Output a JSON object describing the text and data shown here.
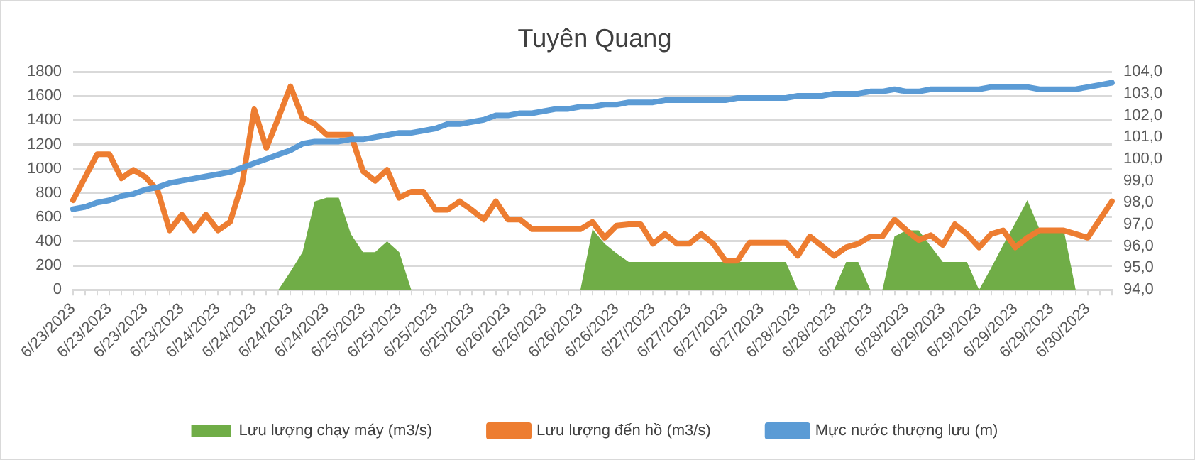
{
  "chart_data": {
    "type": "line",
    "title": "Tuyên Quang",
    "categories": [
      "6/23/2023",
      null,
      null,
      "6/23/2023",
      null,
      null,
      "6/23/2023",
      null,
      null,
      "6/23/2023",
      null,
      null,
      "6/24/2023",
      null,
      null,
      "6/24/2023",
      null,
      null,
      "6/24/2023",
      null,
      null,
      "6/24/2023",
      null,
      null,
      "6/25/2023",
      null,
      null,
      "6/25/2023",
      null,
      null,
      "6/25/2023",
      null,
      null,
      "6/25/2023",
      null,
      null,
      "6/26/2023",
      null,
      null,
      "6/26/2023",
      null,
      null,
      "6/26/2023",
      null,
      null,
      "6/26/2023",
      null,
      null,
      "6/27/2023",
      null,
      null,
      "6/27/2023",
      null,
      null,
      "6/27/2023",
      null,
      null,
      "6/27/2023",
      null,
      null,
      "6/28/2023",
      null,
      null,
      "6/28/2023",
      null,
      null,
      "6/28/2023",
      null,
      null,
      "6/28/2023",
      null,
      null,
      "6/29/2023",
      null,
      null,
      "6/29/2023",
      null,
      null,
      "6/29/2023",
      null,
      null,
      "6/29/2023",
      null,
      null,
      "6/30/2023",
      null,
      null
    ],
    "series": [
      {
        "name": "Lưu lượng chạy máy (m3/s)",
        "type": "area",
        "color": "#70ad47",
        "values": [
          0,
          0,
          0,
          0,
          0,
          0,
          0,
          0,
          0,
          0,
          0,
          0,
          0,
          0,
          0,
          0,
          0,
          0,
          150,
          310,
          730,
          760,
          760,
          460,
          310,
          310,
          400,
          310,
          0,
          0,
          0,
          0,
          0,
          0,
          0,
          0,
          0,
          0,
          0,
          0,
          0,
          0,
          0,
          500,
          380,
          300,
          230,
          230,
          230,
          230,
          230,
          230,
          230,
          230,
          230,
          230,
          230,
          230,
          230,
          230,
          0,
          0,
          0,
          0,
          230,
          230,
          0,
          0,
          440,
          490,
          490,
          360,
          230,
          230,
          230,
          0,
          180,
          370,
          550,
          740,
          500,
          500,
          500,
          0,
          0,
          0,
          0
        ]
      },
      {
        "name": "Lưu lượng đến hồ (m3/s)",
        "type": "line",
        "color": "#ed7d31",
        "values": [
          740,
          930,
          1120,
          1120,
          920,
          990,
          930,
          820,
          490,
          620,
          490,
          620,
          490,
          560,
          880,
          1490,
          1170,
          1420,
          1680,
          1420,
          1370,
          1280,
          1280,
          1280,
          980,
          900,
          990,
          760,
          810,
          810,
          660,
          660,
          730,
          660,
          580,
          730,
          580,
          580,
          500,
          500,
          500,
          500,
          500,
          560,
          430,
          530,
          540,
          540,
          380,
          460,
          380,
          380,
          460,
          380,
          240,
          240,
          390,
          390,
          390,
          390,
          280,
          440,
          360,
          280,
          350,
          380,
          440,
          440,
          580,
          490,
          410,
          450,
          370,
          540,
          460,
          350,
          460,
          490,
          350,
          430,
          490,
          490,
          490,
          460,
          430,
          580,
          730
        ]
      },
      {
        "name": "Mực nước thượng lưu (m)",
        "type": "line",
        "axis": "y2",
        "color": "#5b9bd5",
        "values": [
          97.7,
          97.8,
          98.0,
          98.1,
          98.3,
          98.4,
          98.6,
          98.7,
          98.9,
          99.0,
          99.1,
          99.2,
          99.3,
          99.4,
          99.6,
          99.8,
          100.0,
          100.2,
          100.4,
          100.7,
          100.8,
          100.8,
          100.8,
          100.9,
          100.9,
          101.0,
          101.1,
          101.2,
          101.2,
          101.3,
          101.4,
          101.6,
          101.6,
          101.7,
          101.8,
          102.0,
          102.0,
          102.1,
          102.1,
          102.2,
          102.3,
          102.3,
          102.4,
          102.4,
          102.5,
          102.5,
          102.6,
          102.6,
          102.6,
          102.7,
          102.7,
          102.7,
          102.7,
          102.7,
          102.7,
          102.8,
          102.8,
          102.8,
          102.8,
          102.8,
          102.9,
          102.9,
          102.9,
          103.0,
          103.0,
          103.0,
          103.1,
          103.1,
          103.2,
          103.1,
          103.1,
          103.2,
          103.2,
          103.2,
          103.2,
          103.2,
          103.3,
          103.3,
          103.3,
          103.3,
          103.2,
          103.2,
          103.2,
          103.2,
          103.3,
          103.4,
          103.5
        ]
      }
    ],
    "ylim": [
      0,
      1800
    ],
    "yticks": [
      0,
      200,
      400,
      600,
      800,
      1000,
      1200,
      1400,
      1600,
      1800
    ],
    "y2lim": [
      94,
      104
    ],
    "y2ticks": [
      {
        "value": 94,
        "label": "94,0"
      },
      {
        "value": 95,
        "label": "95,0"
      },
      {
        "value": 96,
        "label": "96,0"
      },
      {
        "value": 97,
        "label": "97,0"
      },
      {
        "value": 98,
        "label": "98,0"
      },
      {
        "value": 99,
        "label": "99,0"
      },
      {
        "value": 100,
        "label": "100,0"
      },
      {
        "value": 101,
        "label": "101,0"
      },
      {
        "value": 102,
        "label": "102,0"
      },
      {
        "value": 103,
        "label": "103,0"
      },
      {
        "value": 104,
        "label": "104,0"
      }
    ],
    "grid": "y",
    "legend": "bottom",
    "marker": "none",
    "line_style": "solid"
  }
}
